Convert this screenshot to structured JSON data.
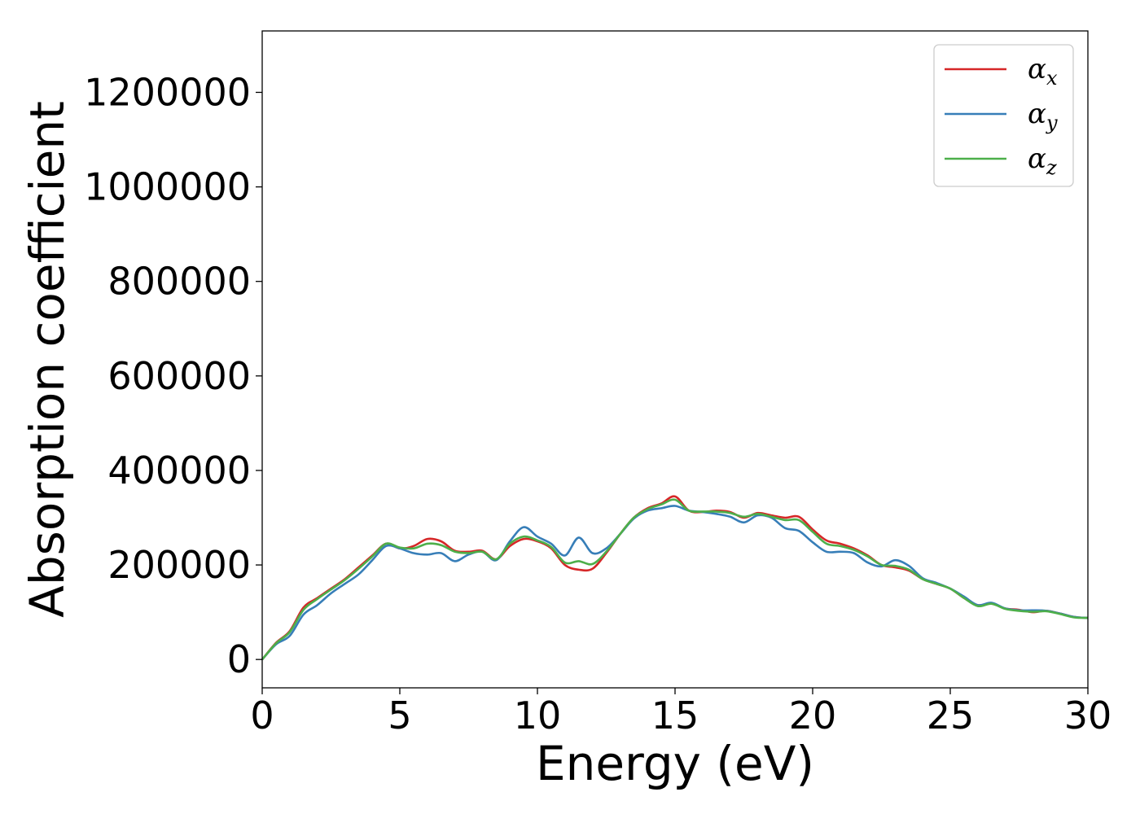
{
  "chart_data": {
    "type": "line",
    "title": "",
    "xlabel": "Energy (eV)",
    "ylabel": "Absorption coefficient",
    "xlim": [
      0,
      30
    ],
    "ylim": [
      -60000,
      1330000
    ],
    "xticks": [
      0,
      5,
      10,
      15,
      20,
      25,
      30
    ],
    "xtick_labels": [
      "0",
      "5",
      "10",
      "15",
      "20",
      "25",
      "30"
    ],
    "yticks": [
      0,
      200000,
      400000,
      600000,
      800000,
      1000000,
      1200000
    ],
    "ytick_labels": [
      "0",
      "200000",
      "400000",
      "600000",
      "800000",
      "1000000",
      "1200000"
    ],
    "grid": false,
    "legend_position": "top-right",
    "x": [
      0,
      0.5,
      1,
      1.5,
      2,
      2.5,
      3,
      3.5,
      4,
      4.5,
      5,
      5.5,
      6,
      6.5,
      7,
      7.5,
      8,
      8.5,
      9,
      9.5,
      10,
      10.5,
      11,
      11.5,
      12,
      12.5,
      13,
      13.5,
      14,
      14.5,
      15,
      15.5,
      16,
      16.5,
      17,
      17.5,
      18,
      18.5,
      19,
      19.5,
      20,
      20.5,
      21,
      21.5,
      22,
      22.5,
      23,
      23.5,
      24,
      24.5,
      25,
      25.5,
      26,
      26.5,
      27,
      27.5,
      28,
      28.5,
      29,
      29.5,
      30
    ],
    "series": [
      {
        "name": "α",
        "subscript": "x",
        "color": "#d62728",
        "values": [
          0,
          35000,
          60000,
          110000,
          130000,
          150000,
          170000,
          195000,
          220000,
          245000,
          235000,
          240000,
          255000,
          250000,
          230000,
          228000,
          230000,
          212000,
          240000,
          255000,
          250000,
          235000,
          200000,
          190000,
          192000,
          225000,
          265000,
          300000,
          320000,
          330000,
          345000,
          315000,
          312000,
          315000,
          312000,
          300000,
          310000,
          305000,
          300000,
          302000,
          275000,
          252000,
          245000,
          235000,
          220000,
          200000,
          195000,
          188000,
          170000,
          160000,
          150000,
          130000,
          115000,
          118000,
          108000,
          105000,
          100000,
          103000,
          97000,
          90000,
          88000
        ]
      },
      {
        "name": "α",
        "subscript": "y",
        "color": "#377eb8",
        "values": [
          0,
          32000,
          50000,
          95000,
          115000,
          140000,
          160000,
          180000,
          210000,
          240000,
          235000,
          225000,
          222000,
          225000,
          208000,
          222000,
          228000,
          210000,
          250000,
          280000,
          260000,
          245000,
          220000,
          258000,
          225000,
          235000,
          265000,
          298000,
          315000,
          320000,
          325000,
          315000,
          312000,
          308000,
          302000,
          290000,
          305000,
          300000,
          278000,
          272000,
          248000,
          228000,
          228000,
          225000,
          205000,
          197000,
          210000,
          198000,
          172000,
          162000,
          150000,
          133000,
          115000,
          120000,
          108000,
          104000,
          104000,
          103000,
          97000,
          90000,
          88000
        ]
      },
      {
        "name": "α",
        "subscript": "z",
        "color": "#4daf4a",
        "values": [
          0,
          34000,
          58000,
          105000,
          128000,
          148000,
          168000,
          192000,
          218000,
          245000,
          237000,
          235000,
          245000,
          242000,
          228000,
          225000,
          228000,
          212000,
          245000,
          260000,
          252000,
          238000,
          205000,
          208000,
          202000,
          228000,
          265000,
          300000,
          318000,
          328000,
          338000,
          315000,
          313000,
          313000,
          310000,
          302000,
          308000,
          302000,
          295000,
          295000,
          270000,
          245000,
          240000,
          232000,
          218000,
          200000,
          198000,
          190000,
          170000,
          160000,
          150000,
          130000,
          113000,
          118000,
          107000,
          103000,
          101000,
          102000,
          96000,
          89000,
          88000
        ]
      }
    ]
  }
}
